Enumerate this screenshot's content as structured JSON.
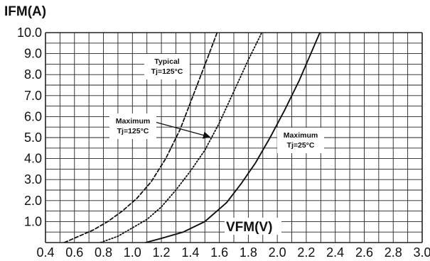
{
  "chart_data": {
    "type": "line",
    "ylabel": "IFM(A)",
    "xlabel": "VFM(V)",
    "xlim": [
      0.4,
      3.0
    ],
    "ylim": [
      0,
      10.0
    ],
    "x_ticks": [
      "0.4",
      "0.6",
      "0.8",
      "1.0",
      "1.2",
      "1.4",
      "1.6",
      "1.8",
      "2.0",
      "2.2",
      "2.4",
      "2.6",
      "2.8",
      "3.0"
    ],
    "y_ticks": [
      "1.0",
      "2.0",
      "3.0",
      "4.0",
      "5.0",
      "6.0",
      "7.0",
      "8.0",
      "9.0",
      "10.0"
    ],
    "grid": true,
    "series": [
      {
        "style": "dashed",
        "color": "#111111",
        "points": [
          [
            0.53,
            0.0
          ],
          [
            0.63,
            0.3
          ],
          [
            0.73,
            0.6
          ],
          [
            0.83,
            1.0
          ],
          [
            0.93,
            1.5
          ],
          [
            1.03,
            2.1
          ],
          [
            1.13,
            2.9
          ],
          [
            1.23,
            4.0
          ],
          [
            1.33,
            5.4
          ],
          [
            1.43,
            7.2
          ],
          [
            1.53,
            9.0
          ],
          [
            1.59,
            10.1
          ]
        ]
      },
      {
        "style": "dotted",
        "color": "#111111",
        "points": [
          [
            0.78,
            0.0
          ],
          [
            0.9,
            0.3
          ],
          [
            1.0,
            0.7
          ],
          [
            1.1,
            1.1
          ],
          [
            1.2,
            1.7
          ],
          [
            1.3,
            2.5
          ],
          [
            1.4,
            3.4
          ],
          [
            1.5,
            4.4
          ],
          [
            1.6,
            5.7
          ],
          [
            1.7,
            7.2
          ],
          [
            1.8,
            8.7
          ],
          [
            1.9,
            10.1
          ]
        ]
      },
      {
        "style": "solid",
        "color": "#111111",
        "points": [
          [
            1.09,
            0.0
          ],
          [
            1.2,
            0.2
          ],
          [
            1.35,
            0.5
          ],
          [
            1.5,
            1.0
          ],
          [
            1.65,
            1.9
          ],
          [
            1.75,
            2.8
          ],
          [
            1.85,
            3.8
          ],
          [
            1.95,
            5.0
          ],
          [
            2.05,
            6.3
          ],
          [
            2.15,
            7.7
          ],
          [
            2.25,
            9.3
          ],
          [
            2.3,
            10.1
          ]
        ]
      }
    ],
    "annotations": [
      {
        "lines": [
          "Typical",
          "Tj=125°C"
        ],
        "series": 0
      },
      {
        "lines": [
          "Maximum",
          "Tj=125°C"
        ],
        "series": 1
      },
      {
        "lines": [
          "Maximum",
          "Tj=25°C"
        ],
        "series": 2
      }
    ]
  }
}
